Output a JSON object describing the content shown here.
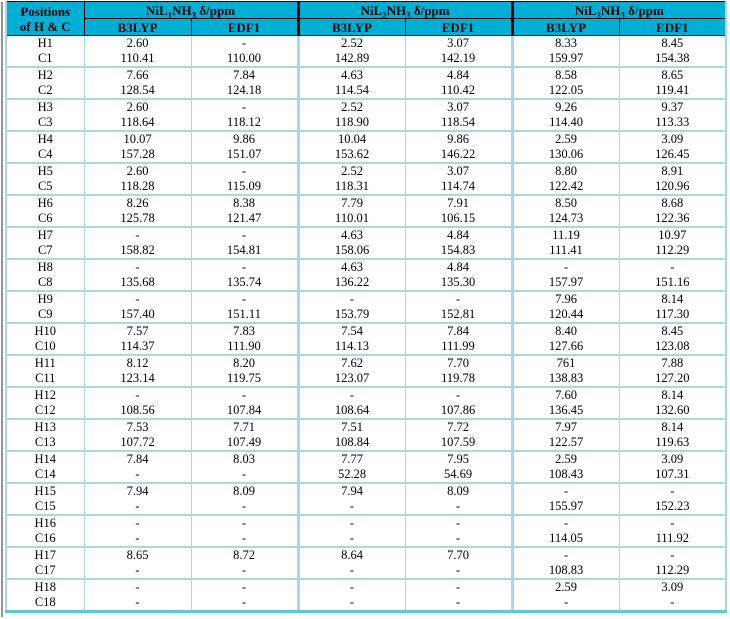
{
  "colors": {
    "header_bg": "#00AFD4",
    "grid": "#A9D8E0",
    "grid_strong": "#62C6DA",
    "header_border": "#000000",
    "text": "#000000",
    "page_edge": "#949494"
  },
  "table": {
    "corner_header": {
      "line1": "Positions",
      "line2": "of H & C"
    },
    "groups": [
      {
        "pre": "NiL",
        "sub1": "1",
        "mid": "NH",
        "sub2": "3",
        "post": " δ/ppm"
      },
      {
        "pre": "NiL",
        "sub1": "2",
        "mid": "NH",
        "sub2": "3",
        "post": " δ/ppm"
      },
      {
        "pre": "NiL",
        "sub1": "3",
        "mid": "NH",
        "sub2": "3",
        "post": " δ/ppm"
      }
    ],
    "method_headers": [
      "B3LYP",
      "EDF1"
    ],
    "rows": [
      {
        "label": "H1",
        "values": [
          "2.60",
          "-",
          "2.52",
          "3.07",
          "8.33",
          "8.45"
        ]
      },
      {
        "label": "C1",
        "values": [
          "110.41",
          "110.00",
          "142.89",
          "142.19",
          "159.97",
          "154.38"
        ]
      },
      {
        "label": "H2",
        "values": [
          "7.66",
          "7.84",
          "4.63",
          "4.84",
          "8.58",
          "8.65"
        ]
      },
      {
        "label": "C2",
        "values": [
          "128.54",
          "124.18",
          "114.54",
          "110.42",
          "122.05",
          "119.41"
        ]
      },
      {
        "label": "H3",
        "values": [
          "2.60",
          "-",
          "2.52",
          "3.07",
          "9.26",
          "9.37"
        ]
      },
      {
        "label": "C3",
        "values": [
          "118.64",
          "118.12",
          "118.90",
          "118.54",
          "114.40",
          "113.33"
        ]
      },
      {
        "label": "H4",
        "values": [
          "10.07",
          "9.86",
          "10.04",
          "9.86",
          "2.59",
          "3.09"
        ]
      },
      {
        "label": "C4",
        "values": [
          "157.28",
          "151.07",
          "153.62",
          "146.22",
          "130.06",
          "126.45"
        ]
      },
      {
        "label": "H5",
        "values": [
          "2.60",
          "-",
          "2.52",
          "3.07",
          "8.80",
          "8.91"
        ]
      },
      {
        "label": "C5",
        "values": [
          "118.28",
          "115.09",
          "118.31",
          "114.74",
          "122.42",
          "120.96"
        ]
      },
      {
        "label": "H6",
        "values": [
          "8.26",
          "8.38",
          "7.79",
          "7.91",
          "8.50",
          "8.68"
        ]
      },
      {
        "label": "C6",
        "values": [
          "125.78",
          "121.47",
          "110.01",
          "106.15",
          "124.73",
          "122.36"
        ]
      },
      {
        "label": "H7",
        "values": [
          "-",
          "-",
          "4.63",
          "4.84",
          "11.19",
          "10.97"
        ]
      },
      {
        "label": "C7",
        "values": [
          "158.82",
          "154.81",
          "158.06",
          "154.83",
          "111.41",
          "112.29"
        ]
      },
      {
        "label": "H8",
        "values": [
          "-",
          "-",
          "4.63",
          "4.84",
          "-",
          "-"
        ]
      },
      {
        "label": "C8",
        "values": [
          "135.68",
          "135.74",
          "136.22",
          "135.30",
          "157.97",
          "151.16"
        ]
      },
      {
        "label": "H9",
        "values": [
          "-",
          "-",
          "-",
          "-",
          "7.96",
          "8.14"
        ]
      },
      {
        "label": "C9",
        "values": [
          "157.40",
          "151.11",
          "153.79",
          "152.81",
          "120.44",
          "117.30"
        ]
      },
      {
        "label": "H10",
        "values": [
          "7.57",
          "7.83",
          "7.54",
          "7.84",
          "8.40",
          "8.45"
        ]
      },
      {
        "label": "C10",
        "values": [
          "114.37",
          "111.90",
          "114.13",
          "111.99",
          "127.66",
          "123.08"
        ]
      },
      {
        "label": "H11",
        "values": [
          "8.12",
          "8.20",
          "7.62",
          "7.70",
          "761",
          "7.88"
        ]
      },
      {
        "label": "C11",
        "values": [
          "123.14",
          "119.75",
          "123.07",
          "119.78",
          "138.83",
          "127.20"
        ]
      },
      {
        "label": "H12",
        "values": [
          "-",
          "-",
          "-",
          "-",
          "7.60",
          "8.14"
        ]
      },
      {
        "label": "C12",
        "values": [
          "108.56",
          "107.84",
          "108.64",
          "107.86",
          "136.45",
          "132.60"
        ]
      },
      {
        "label": "H13",
        "values": [
          "7.53",
          "7.71",
          "7.51",
          "7.72",
          "7.97",
          "8.14"
        ]
      },
      {
        "label": "C13",
        "values": [
          "107.72",
          "107.49",
          "108.84",
          "107.59",
          "122.57",
          "119.63"
        ]
      },
      {
        "label": "H14",
        "values": [
          "7.84",
          "8.03",
          "7.77",
          "7.95",
          "2.59",
          "3.09"
        ]
      },
      {
        "label": "C14",
        "values": [
          "-",
          "-",
          "52.28",
          "54.69",
          "108.43",
          "107.31"
        ]
      },
      {
        "label": "H15",
        "values": [
          "7.94",
          "8.09",
          "7.94",
          "8.09",
          "-",
          "-"
        ]
      },
      {
        "label": "C15",
        "values": [
          "-",
          "-",
          "-",
          "-",
          "155.97",
          "152.23"
        ]
      },
      {
        "label": "H16",
        "values": [
          "-",
          "-",
          "-",
          "-",
          "-",
          "-"
        ]
      },
      {
        "label": "C16",
        "values": [
          "-",
          "-",
          "-",
          "-",
          "114.05",
          "111.92"
        ]
      },
      {
        "label": "H17",
        "values": [
          "8.65",
          "8.72",
          "8.64",
          "7.70",
          "-",
          "-"
        ]
      },
      {
        "label": "C17",
        "values": [
          "-",
          "-",
          "-",
          "-",
          "108.83",
          "112.29"
        ]
      },
      {
        "label": "H18",
        "values": [
          "-",
          "-",
          "-",
          "-",
          "2.59",
          "3.09"
        ]
      },
      {
        "label": "C18",
        "values": [
          "-",
          "-",
          "-",
          "-",
          "-",
          "-"
        ]
      }
    ]
  }
}
